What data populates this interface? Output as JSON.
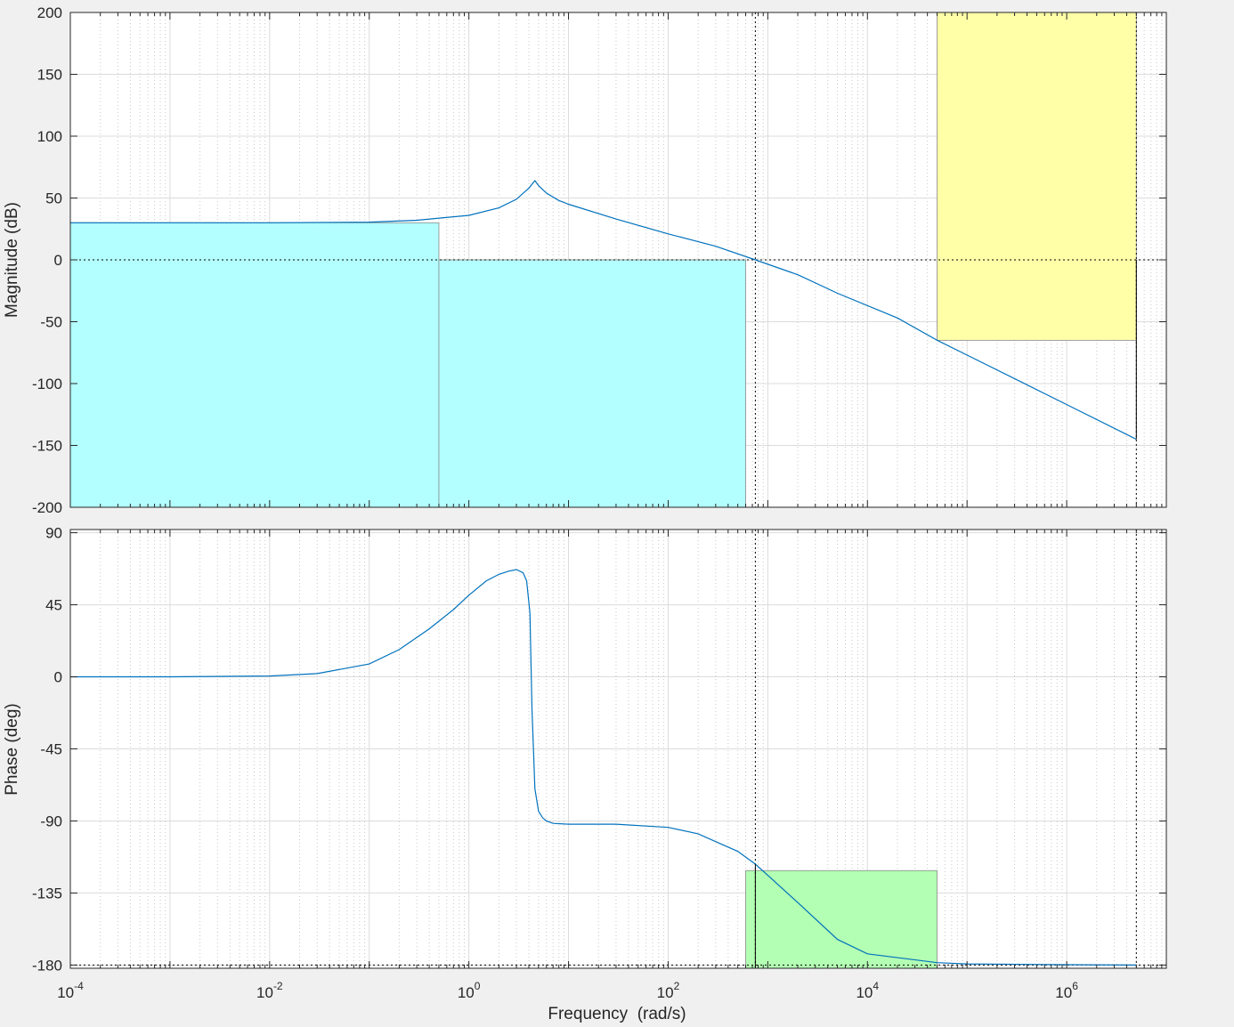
{
  "chart_data": [
    {
      "type": "line",
      "panel": "magnitude",
      "ylabel": "Magnitude (dB)",
      "xlabel": "",
      "xscale": "log",
      "xlim": [
        0.0001,
        10000000
      ],
      "ylim": [
        -200,
        200
      ],
      "yticks": [
        200,
        150,
        100,
        50,
        0,
        -50,
        -100,
        -150,
        -200
      ],
      "grid": true,
      "reference_line": {
        "y": 0,
        "style": "dotted"
      },
      "crossover_frequency": 750,
      "bandwidth_limit": 5000000,
      "series": [
        {
          "color": "#0072bd",
          "x": [
            0.0001,
            0.001,
            0.01,
            0.1,
            0.3,
            1,
            2,
            3,
            4,
            4.6,
            5,
            6,
            8,
            10,
            30,
            100,
            300,
            750,
            2000,
            5000,
            20000,
            50000,
            100000,
            1000000,
            5000000
          ],
          "y": [
            30,
            30,
            30,
            30.5,
            32,
            36,
            42,
            49,
            58,
            64,
            60,
            54,
            48,
            45,
            33,
            21,
            11,
            0,
            -12,
            -27,
            -47,
            -65,
            -77,
            -117,
            -145
          ]
        }
      ],
      "regions": [
        {
          "color": "#b3ffff",
          "x": [
            0.0001,
            0.5
          ],
          "y": [
            -200,
            30
          ]
        },
        {
          "color": "#b3ffff",
          "x": [
            0.5,
            600
          ],
          "y": [
            -200,
            0
          ]
        },
        {
          "color": "#ffffa8",
          "x": [
            50000,
            5000000
          ],
          "y": [
            -65,
            200
          ]
        }
      ]
    },
    {
      "type": "line",
      "panel": "phase",
      "ylabel": "Phase (deg)",
      "xlabel": "Frequency  (rad/s)",
      "xscale": "log",
      "xlim": [
        0.0001,
        10000000
      ],
      "ylim": [
        -182,
        92
      ],
      "yticks": [
        90,
        45,
        0,
        -45,
        -90,
        -135,
        -180
      ],
      "xticks": [
        "10-4",
        "10-2",
        "100",
        "102",
        "104",
        "106"
      ],
      "grid": true,
      "reference_line": {
        "y": -180,
        "style": "dotted"
      },
      "series": [
        {
          "color": "#0072bd",
          "x": [
            0.0001,
            0.001,
            0.01,
            0.03,
            0.1,
            0.2,
            0.4,
            0.7,
            1,
            1.5,
            2,
            2.5,
            3,
            3.5,
            3.8,
            4.1,
            4.3,
            4.6,
            5,
            5.5,
            6,
            7,
            10,
            30,
            100,
            200,
            500,
            750,
            1000,
            2000,
            5000,
            10000,
            50000,
            100000,
            1000000,
            5000000
          ],
          "y": [
            0,
            0,
            0.5,
            2,
            8,
            17,
            30,
            42,
            51,
            60,
            64,
            66,
            67,
            65,
            60,
            40,
            -20,
            -70,
            -84,
            -88,
            -90,
            -91.5,
            -92,
            -92,
            -94,
            -98,
            -109,
            -117,
            -124,
            -141,
            -164,
            -173,
            -178.5,
            -179.3,
            -179.8,
            -180
          ]
        }
      ],
      "regions": [
        {
          "color": "#b3ffb3",
          "x": [
            600,
            50000
          ],
          "y": [
            -182,
            -121
          ]
        }
      ]
    }
  ],
  "colors": {
    "line": "#0072bd",
    "lower_bound_region": "#b3ffff",
    "upper_bound_region": "#ffffa8",
    "phase_margin_region": "#b3ffb3",
    "axes_background": "#ffffff",
    "figure_background": "#f0f0f0"
  },
  "x_ticks_display": [
    {
      "base": "10",
      "exp": "-4"
    },
    {
      "base": "10",
      "exp": "-2"
    },
    {
      "base": "10",
      "exp": "0"
    },
    {
      "base": "10",
      "exp": "2"
    },
    {
      "base": "10",
      "exp": "4"
    },
    {
      "base": "10",
      "exp": "6"
    }
  ]
}
